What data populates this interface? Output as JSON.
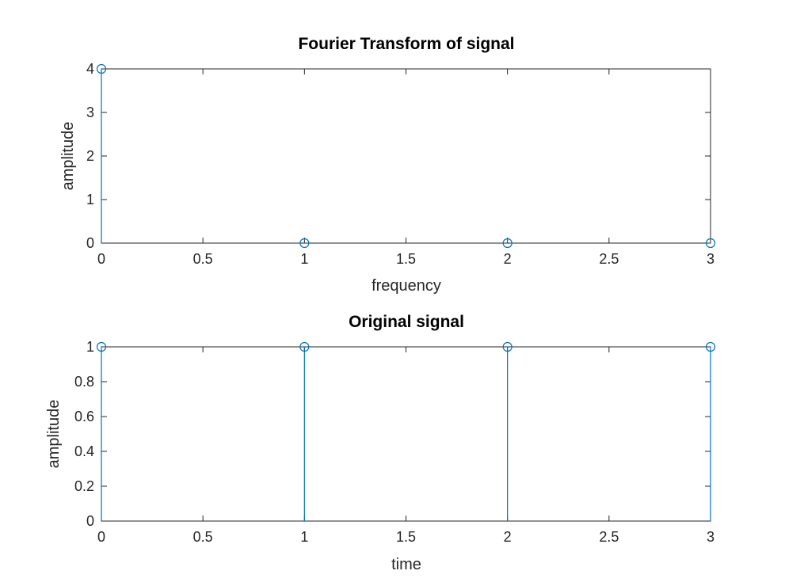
{
  "chart_data": [
    {
      "type": "stem",
      "title": "Fourier Transform of signal",
      "xlabel": "frequency",
      "ylabel": "amplitude",
      "xlim": [
        0,
        3
      ],
      "ylim": [
        0,
        4
      ],
      "xticks": [
        "0",
        "0.5",
        "1",
        "1.5",
        "2",
        "2.5",
        "3"
      ],
      "yticks": [
        "0",
        "1",
        "2",
        "3",
        "4"
      ],
      "x": [
        0,
        1,
        2,
        3
      ],
      "y": [
        4,
        0,
        0,
        0
      ],
      "grid": false,
      "color": "#0072BD"
    },
    {
      "type": "stem",
      "title": "Original signal",
      "xlabel": "time",
      "ylabel": "amplitude",
      "xlim": [
        0,
        3
      ],
      "ylim": [
        0,
        1
      ],
      "xticks": [
        "0",
        "0.5",
        "1",
        "1.5",
        "2",
        "2.5",
        "3"
      ],
      "yticks": [
        "0",
        "0.2",
        "0.4",
        "0.6",
        "0.8",
        "1"
      ],
      "x": [
        0,
        1,
        2,
        3
      ],
      "y": [
        1,
        1,
        1,
        1
      ],
      "grid": false,
      "color": "#0072BD"
    }
  ]
}
